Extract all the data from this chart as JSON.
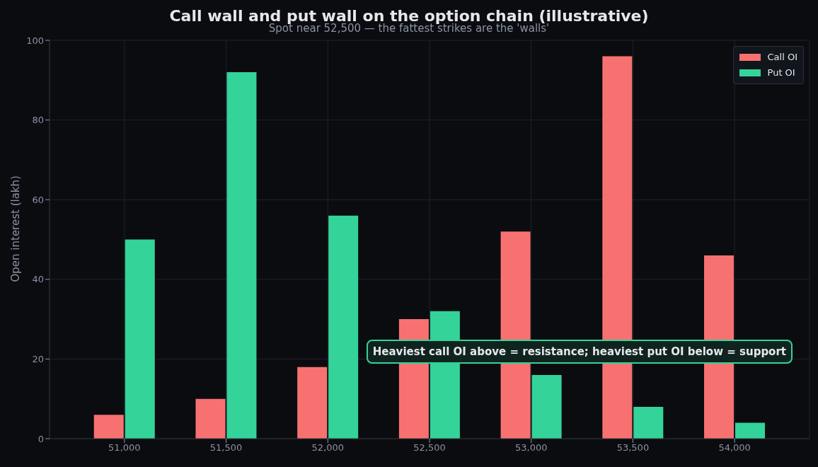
{
  "chart_data": {
    "type": "bar",
    "title": "Call wall and put wall on the option chain (illustrative)",
    "subtitle": "Spot near 52,500 — the fattest strikes are the 'walls'",
    "ylabel": "Open interest (lakh)",
    "categories": [
      "51,000",
      "51,500",
      "52,000",
      "52,500",
      "53,000",
      "53,500",
      "54,000"
    ],
    "series": [
      {
        "name": "Call OI",
        "color": "#f87171",
        "values": [
          6,
          10,
          18,
          30,
          52,
          96,
          46
        ]
      },
      {
        "name": "Put OI",
        "color": "#34d399",
        "values": [
          50,
          92,
          56,
          32,
          16,
          8,
          4
        ]
      }
    ],
    "ylim": [
      0,
      100
    ],
    "yticks": [
      0,
      20,
      40,
      60,
      80,
      100
    ],
    "grid": true,
    "legend": "top right",
    "annotations": [
      "Heaviest call OI above = resistance; heaviest put OI below = support"
    ]
  }
}
